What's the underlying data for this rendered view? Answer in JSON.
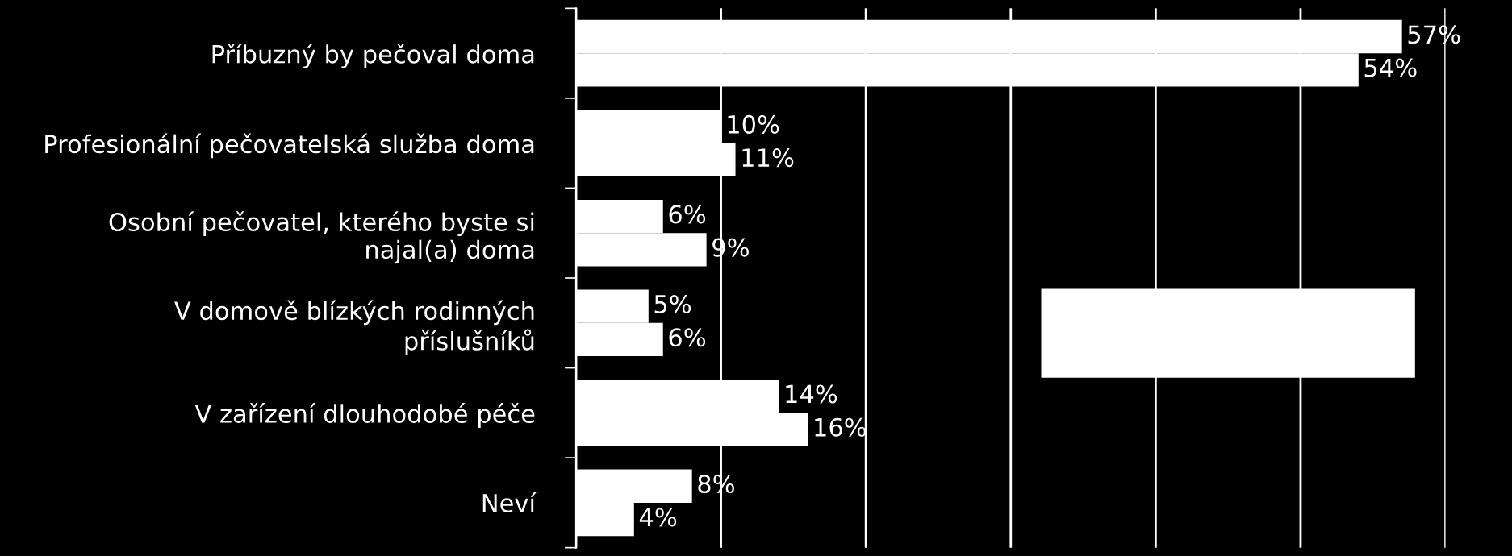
{
  "chart_data": {
    "type": "bar",
    "orientation": "horizontal",
    "categories": [
      "Příbuzný by pečoval doma",
      "Profesionální pečovatelská služba doma",
      "Osobní pečovatel, kterého byste si\nnajal(a) doma",
      "V domově blízkých rodinných\npříslušníků",
      "V zařízení dlouhodobé péče",
      "Neví"
    ],
    "series": [
      {
        "color": "#ffffff",
        "values": [
          57,
          10,
          6,
          5,
          14,
          8
        ],
        "value_labels": [
          "57%",
          "10%",
          "6%",
          "5%",
          "14%",
          "8%"
        ]
      },
      {
        "color": "#ffffff",
        "values": [
          54,
          11,
          9,
          6,
          16,
          4
        ],
        "value_labels": [
          "54%",
          "11%",
          "9%",
          "6%",
          "16%",
          "4%"
        ]
      }
    ],
    "xlim": [
      0,
      60
    ],
    "xticks": [
      {
        "value": 0,
        "label": null
      },
      {
        "value": 10,
        "label": null
      },
      {
        "value": 20,
        "label": null
      },
      {
        "value": 30,
        "label": null
      },
      {
        "value": 40,
        "label": null
      },
      {
        "value": 50,
        "label": null
      },
      {
        "value": 60,
        "label": null
      }
    ],
    "tick_labels": "y",
    "grid": "x",
    "legend": false
  }
}
